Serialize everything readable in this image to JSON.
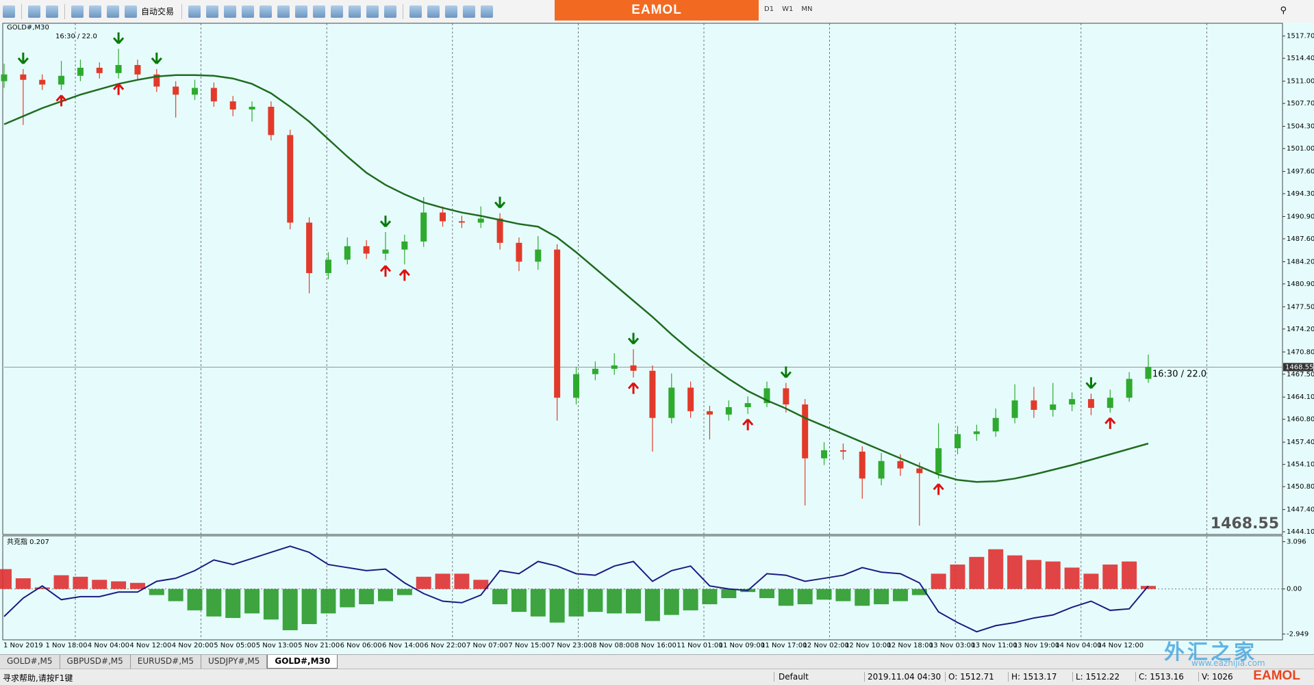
{
  "toolbar": {
    "auto_trade": "自动交易",
    "brand": "EAMOL",
    "periods": [
      "D1",
      "W1",
      "MN"
    ]
  },
  "chart_data": {
    "type": "candlestick",
    "symbol": "GOLD#,M30",
    "info": "16:30 / 22.0",
    "x_labels": [
      "1 Nov 2019",
      "1 Nov 18:00",
      "4 Nov 04:00",
      "4 Nov 12:00",
      "4 Nov 20:00",
      "5 Nov 05:00",
      "5 Nov 13:00",
      "5 Nov 21:00",
      "6 Nov 06:00",
      "6 Nov 14:00",
      "6 Nov 22:00",
      "7 Nov 07:00",
      "7 Nov 15:00",
      "7 Nov 23:00",
      "8 Nov 08:00",
      "8 Nov 16:00",
      "11 Nov 01:00",
      "11 Nov 09:00",
      "11 Nov 17:00",
      "12 Nov 02:00",
      "12 Nov 10:00",
      "12 Nov 18:00",
      "13 Nov 03:00",
      "13 Nov 11:00",
      "13 Nov 19:00",
      "14 Nov 04:00",
      "14 Nov 12:00"
    ],
    "open": [
      1511.0,
      1512.0,
      1511.2,
      1510.5,
      1511.8,
      1513.0,
      1512.2,
      1513.4,
      1512.0,
      1510.2,
      1509.0,
      1510.0,
      1508.0,
      1506.8,
      1507.2,
      1503.0,
      1490.0,
      1482.5,
      1484.5,
      1486.5,
      1485.4,
      1486.0,
      1487.2,
      1491.5,
      1490.2,
      1490.0,
      1490.6,
      1487.0,
      1484.2,
      1486.0,
      1464.0,
      1467.5,
      1468.3,
      1468.8,
      1468.0,
      1461.0,
      1465.5,
      1462.0,
      1461.5,
      1462.6,
      1463.2,
      1465.4,
      1463.0,
      1455.0,
      1456.2,
      1456.0,
      1452.0,
      1454.6,
      1453.5,
      1452.8,
      1456.5,
      1458.6,
      1459.0,
      1461.0,
      1463.6,
      1462.2,
      1463.0,
      1463.8,
      1462.5,
      1464.0,
      1466.8
    ],
    "high": [
      1513.6,
      1512.8,
      1512.0,
      1514.0,
      1514.2,
      1513.8,
      1515.8,
      1514.2,
      1512.8,
      1511.0,
      1511.2,
      1510.8,
      1508.8,
      1508.0,
      1508.0,
      1503.8,
      1490.8,
      1485.6,
      1487.8,
      1487.4,
      1488.6,
      1488.2,
      1493.8,
      1492.4,
      1491.0,
      1492.4,
      1491.4,
      1487.8,
      1488.0,
      1486.8,
      1468.6,
      1469.4,
      1470.6,
      1471.2,
      1468.8,
      1467.6,
      1466.4,
      1462.8,
      1463.6,
      1464.2,
      1466.4,
      1466.2,
      1463.8,
      1457.4,
      1457.2,
      1456.8,
      1455.8,
      1455.6,
      1454.4,
      1460.2,
      1459.8,
      1460.0,
      1462.4,
      1466.0,
      1465.6,
      1466.2,
      1464.8,
      1464.6,
      1465.2,
      1467.8,
      1470.4
    ],
    "low": [
      1510.0,
      1504.5,
      1509.7,
      1509.7,
      1511.0,
      1511.4,
      1511.4,
      1511.2,
      1509.4,
      1505.6,
      1508.2,
      1507.2,
      1505.8,
      1505.0,
      1502.2,
      1489.0,
      1479.5,
      1481.6,
      1483.8,
      1484.6,
      1484.4,
      1483.8,
      1486.4,
      1489.4,
      1489.2,
      1489.2,
      1486.0,
      1482.8,
      1483.0,
      1460.6,
      1463.0,
      1466.6,
      1467.4,
      1467.0,
      1456.0,
      1460.2,
      1461.0,
      1457.8,
      1460.6,
      1461.6,
      1462.6,
      1461.8,
      1448.0,
      1454.0,
      1454.8,
      1449.0,
      1451.0,
      1452.4,
      1445.0,
      1452.0,
      1455.6,
      1457.6,
      1458.2,
      1460.2,
      1461.0,
      1461.2,
      1462.0,
      1461.4,
      1461.8,
      1463.4,
      1466.2
    ],
    "close": [
      1512.0,
      1511.2,
      1510.5,
      1511.8,
      1513.0,
      1512.2,
      1513.4,
      1512.0,
      1510.2,
      1509.0,
      1510.0,
      1508.0,
      1506.8,
      1507.2,
      1503.0,
      1490.0,
      1482.5,
      1484.5,
      1486.5,
      1485.4,
      1486.0,
      1487.2,
      1491.5,
      1490.2,
      1490.0,
      1490.6,
      1487.0,
      1484.2,
      1486.0,
      1464.0,
      1467.5,
      1468.3,
      1468.8,
      1468.0,
      1461.0,
      1465.5,
      1462.0,
      1461.5,
      1462.6,
      1463.2,
      1465.4,
      1463.0,
      1455.0,
      1456.2,
      1456.0,
      1452.0,
      1454.6,
      1453.5,
      1452.8,
      1456.5,
      1458.6,
      1459.0,
      1461.0,
      1463.6,
      1462.2,
      1463.0,
      1463.8,
      1462.5,
      1464.0,
      1466.8,
      1468.55
    ],
    "up_color": "#2eaa2e",
    "down_color": "#e23a2a",
    "ma": {
      "color": "#1f6b1f",
      "values": [
        1504.6,
        1505.8,
        1507.0,
        1508.0,
        1509.0,
        1509.8,
        1510.6,
        1511.2,
        1511.7,
        1511.9,
        1511.9,
        1511.8,
        1511.4,
        1510.6,
        1509.2,
        1507.2,
        1505.0,
        1502.4,
        1499.8,
        1497.4,
        1495.6,
        1494.2,
        1493.0,
        1492.2,
        1491.5,
        1491.0,
        1490.4,
        1489.8,
        1489.4,
        1487.8,
        1485.6,
        1483.2,
        1480.8,
        1478.4,
        1476.0,
        1473.4,
        1471.0,
        1468.8,
        1466.8,
        1465.0,
        1463.6,
        1462.4,
        1461.0,
        1459.8,
        1458.6,
        1457.4,
        1456.2,
        1455.0,
        1453.8,
        1452.6,
        1451.8,
        1451.5,
        1451.6,
        1452.0,
        1452.6,
        1453.3,
        1454.0,
        1454.8,
        1455.6,
        1456.4,
        1457.2
      ]
    },
    "ylim": [
      1443.7,
      1519.6
    ],
    "yticks": [
      {
        "value": 1517.7,
        "label": "1517.70"
      },
      {
        "value": 1514.4,
        "label": "1514.40"
      },
      {
        "value": 1511.0,
        "label": "1511.00"
      },
      {
        "value": 1507.7,
        "label": "1507.70"
      },
      {
        "value": 1504.3,
        "label": "1504.30"
      },
      {
        "value": 1501.0,
        "label": "1501.00"
      },
      {
        "value": 1497.6,
        "label": "1497.60"
      },
      {
        "value": 1494.3,
        "label": "1494.30"
      },
      {
        "value": 1490.9,
        "label": "1490.90"
      },
      {
        "value": 1487.6,
        "label": "1487.60"
      },
      {
        "value": 1484.2,
        "label": "1484.20"
      },
      {
        "value": 1480.9,
        "label": "1480.90"
      },
      {
        "value": 1477.5,
        "label": "1477.50"
      },
      {
        "value": 1474.2,
        "label": "1474.20"
      },
      {
        "value": 1470.8,
        "label": "1470.80"
      },
      {
        "value": 1467.5,
        "label": "1467.50"
      },
      {
        "value": 1464.1,
        "label": "1464.10"
      },
      {
        "value": 1460.8,
        "label": "1460.80"
      },
      {
        "value": 1457.4,
        "label": "1457.40"
      },
      {
        "value": 1454.1,
        "label": "1454.10"
      },
      {
        "value": 1450.8,
        "label": "1450.80"
      },
      {
        "value": 1447.4,
        "label": "1447.40"
      },
      {
        "value": 1444.1,
        "label": "1444.10"
      }
    ],
    "current_price": 1468.55,
    "signals": {
      "sell": [
        1,
        6,
        8,
        20,
        26,
        33,
        41,
        57
      ],
      "buy": [
        3,
        6,
        20,
        21,
        33,
        39,
        49,
        58
      ],
      "sell_color": "#0a7a0a",
      "buy_color": "#e01010"
    },
    "indicator": {
      "label": "共克指 0.207",
      "ylim": [
        -3.33,
        3.48
      ],
      "yticks": [
        3.096,
        {
          "value": 0,
          "label": "0.00"
        },
        -2.949
      ],
      "histogram": [
        1.3,
        0.7,
        0.1,
        0.9,
        0.8,
        0.6,
        0.5,
        0.4,
        -0.4,
        -0.8,
        -1.4,
        -1.8,
        -1.9,
        -1.6,
        -2.0,
        -2.7,
        -2.3,
        -1.6,
        -1.2,
        -1.0,
        -0.8,
        -0.4,
        0.8,
        1.0,
        1.0,
        0.6,
        -1.0,
        -1.5,
        -1.8,
        -2.2,
        -1.8,
        -1.5,
        -1.6,
        -1.6,
        -2.1,
        -1.7,
        -1.4,
        -1.0,
        -0.6,
        -0.2,
        -0.6,
        -1.1,
        -1.0,
        -0.7,
        -0.8,
        -1.1,
        -1.0,
        -0.8,
        -0.4,
        1.0,
        1.6,
        2.1,
        2.6,
        2.2,
        1.9,
        1.8,
        1.4,
        1.0,
        1.6,
        1.8,
        0.2
      ],
      "line": [
        -1.8,
        -0.6,
        0.2,
        -0.7,
        -0.5,
        -0.5,
        -0.2,
        -0.2,
        0.5,
        0.7,
        1.2,
        1.9,
        1.6,
        2.0,
        2.4,
        2.8,
        2.4,
        1.6,
        1.4,
        1.2,
        1.3,
        0.4,
        -0.3,
        -0.8,
        -0.9,
        -0.4,
        1.2,
        1.0,
        1.8,
        1.5,
        1.0,
        0.9,
        1.5,
        1.8,
        0.5,
        1.2,
        1.5,
        0.2,
        0.0,
        -0.1,
        1.0,
        0.9,
        0.5,
        0.7,
        0.9,
        1.4,
        1.1,
        1.0,
        0.4,
        -1.5,
        -2.2,
        -2.8,
        -2.4,
        -2.2,
        -1.9,
        -1.7,
        -1.2,
        -0.8,
        -1.4,
        -1.3,
        0.2
      ],
      "line_color": "#1a1a80",
      "pos_color": "#e03030",
      "neg_color": "#2a9a2a"
    }
  },
  "tabs": [
    "GOLD#,M5",
    "GBPUSD#,M5",
    "EURUSD#,M5",
    "USDJPY#,M5",
    "GOLD#,M30"
  ],
  "active_tab": 4,
  "status": {
    "help": "寻求帮助,请按F1键",
    "profile": "Default",
    "time": "2019.11.04 04:30",
    "open": "O: 1512.71",
    "high": "H: 1513.17",
    "low": "L: 1512.22",
    "close": "C: 1513.16",
    "volume": "V: 1026"
  },
  "watermark": {
    "name": "外汇之家",
    "url": "www.eazhijia.com"
  }
}
